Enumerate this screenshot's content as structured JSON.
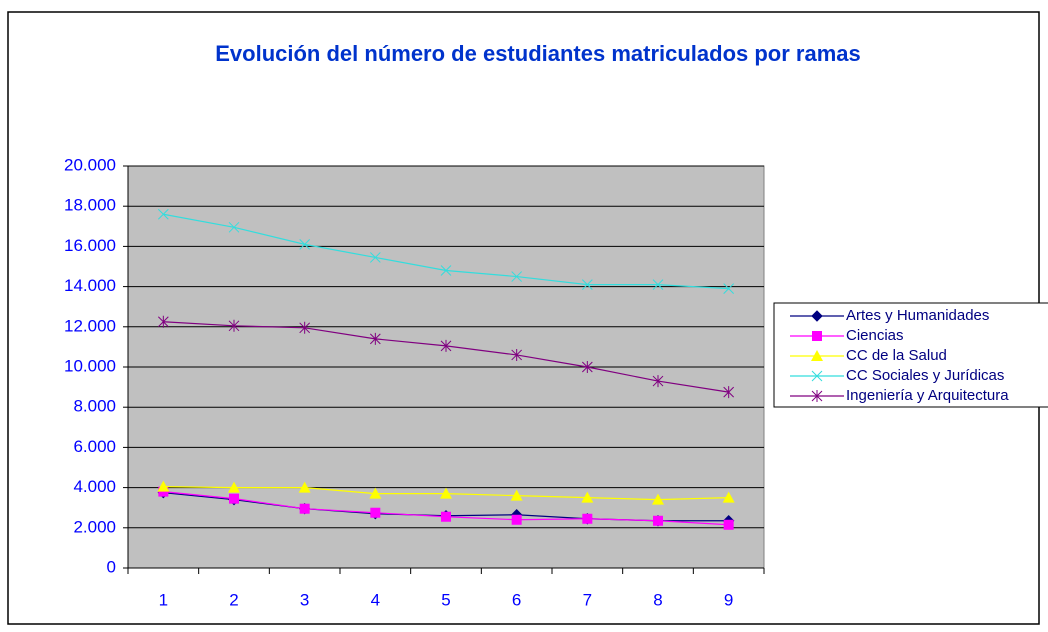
{
  "chart_data": {
    "type": "line",
    "title": "Evolución del número de estudiantes matriculados por ramas",
    "categories": [
      "1",
      "2",
      "3",
      "4",
      "5",
      "6",
      "7",
      "8",
      "9"
    ],
    "series": [
      {
        "name": "Artes y Humanidades",
        "color": "#000080",
        "marker": "diamond",
        "values": [
          3750,
          3400,
          2950,
          2700,
          2600,
          2650,
          2450,
          2350,
          2350
        ]
      },
      {
        "name": "Ciencias",
        "color": "#ff00ff",
        "marker": "square",
        "values": [
          3800,
          3450,
          2950,
          2750,
          2550,
          2400,
          2450,
          2350,
          2150
        ]
      },
      {
        "name": "CC de la Salud",
        "color": "#ffff00",
        "marker": "triangle",
        "values": [
          4050,
          4000,
          4000,
          3700,
          3700,
          3600,
          3500,
          3400,
          3500
        ]
      },
      {
        "name": "CC Sociales y Jurídicas",
        "color": "#33dddd",
        "marker": "x",
        "values": [
          17600,
          16950,
          16100,
          15450,
          14800,
          14500,
          14100,
          14100,
          13900
        ]
      },
      {
        "name": "Ingeniería y Arquitectura",
        "color": "#800080",
        "marker": "asterisk",
        "values": [
          12250,
          12050,
          11950,
          11400,
          11050,
          10600,
          10000,
          9300,
          8750
        ]
      }
    ],
    "ylim": [
      0,
      20000
    ],
    "yticks": [
      0,
      {
        "value": 2000,
        "label": "2.000"
      },
      {
        "value": 4000,
        "label": "4.000"
      },
      {
        "value": 6000,
        "label": "6.000"
      },
      {
        "value": 8000,
        "label": "8.000"
      },
      {
        "value": 10000,
        "label": "10.000"
      },
      {
        "value": 12000,
        "label": "12.000"
      },
      {
        "value": 14000,
        "label": "14.000"
      },
      {
        "value": 16000,
        "label": "16.000"
      },
      {
        "value": 18000,
        "label": "18.000"
      },
      {
        "value": 20000,
        "label": "20.000"
      }
    ],
    "grid": true,
    "legend": "right"
  }
}
